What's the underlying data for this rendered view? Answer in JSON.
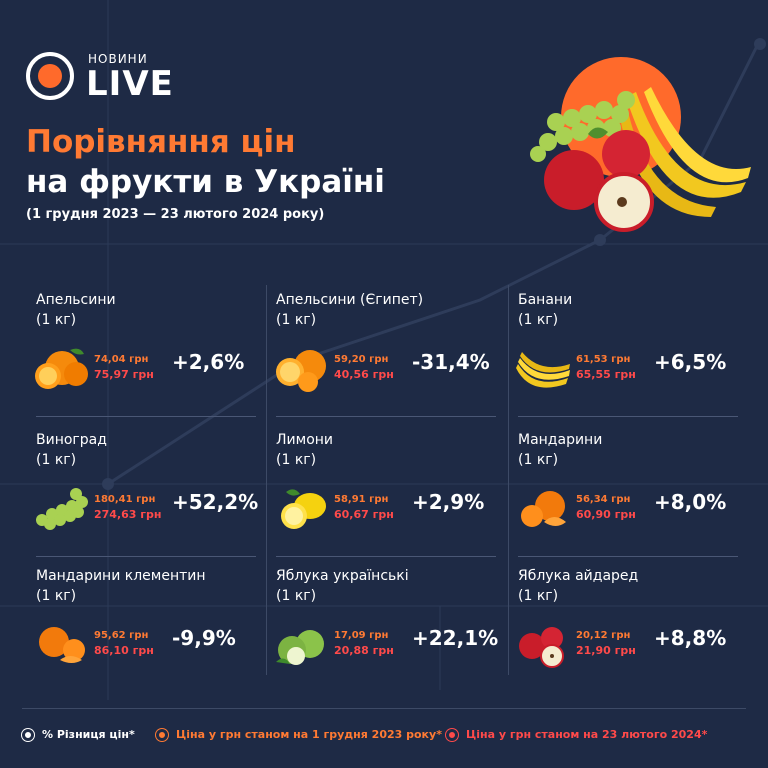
{
  "logo": {
    "small": "НОВИНИ",
    "big": "LIVE"
  },
  "title": {
    "line1": "Порівняння цін",
    "line2": "на фрукти в Україні",
    "subtitle": "(1 грудня 2023 — 23 лютого 2024 року)"
  },
  "colors": {
    "background": "#1e2a45",
    "accent": "#ff7a33",
    "red": "#ff4a4a"
  },
  "items": [
    {
      "name": "Апельсини",
      "unit": "(1 кг)",
      "price_dec": "74,04 грн",
      "price_feb": "75,97 грн",
      "change": "+2,6%",
      "icon": "oranges-icon"
    },
    {
      "name": "Апельсини (Єгипет)",
      "unit": "(1 кг)",
      "price_dec": "59,20 грн",
      "price_feb": "40,56 грн",
      "change": "-31,4%",
      "icon": "egypt-oranges-icon"
    },
    {
      "name": "Банани",
      "unit": "(1 кг)",
      "price_dec": "61,53 грн",
      "price_feb": "65,55 грн",
      "change": "+6,5%",
      "icon": "bananas-icon"
    },
    {
      "name": "Виноград",
      "unit": "(1 кг)",
      "price_dec": "180,41 грн",
      "price_feb": "274,63 грн",
      "change": "+52,2%",
      "icon": "grapes-icon"
    },
    {
      "name": "Лимони",
      "unit": "(1 кг)",
      "price_dec": "58,91 грн",
      "price_feb": "60,67 грн",
      "change": "+2,9%",
      "icon": "lemons-icon"
    },
    {
      "name": "Мандарини",
      "unit": "(1 кг)",
      "price_dec": "56,34 грн",
      "price_feb": "60,90 грн",
      "change": "+8,0%",
      "icon": "tangerines-icon"
    },
    {
      "name": "Мандарини клементин",
      "unit": "(1 кг)",
      "price_dec": "95,62 грн",
      "price_feb": "86,10 грн",
      "change": "-9,9%",
      "icon": "clementines-icon"
    },
    {
      "name": "Яблука українські",
      "unit": "(1 кг)",
      "price_dec": "17,09 грн",
      "price_feb": "20,88 грн",
      "change": "+22,1%",
      "icon": "green-apples-icon"
    },
    {
      "name": "Яблука айдаред",
      "unit": "(1 кг)",
      "price_dec": "20,12 грн",
      "price_feb": "21,90 грн",
      "change": "+8,8%",
      "icon": "red-apples-icon"
    }
  ],
  "legend": {
    "diff": "% Різниця цін*",
    "dec": "Ціна у грн станом на 1 грудня 2023 року*",
    "feb": "Ціна у грн станом на 23 лютого 2024*"
  }
}
